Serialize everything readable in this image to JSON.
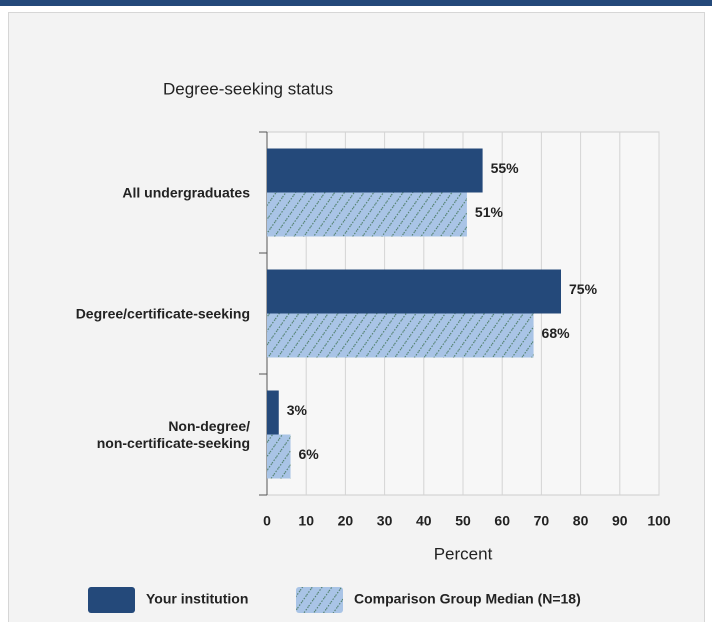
{
  "chart_data": {
    "type": "bar",
    "orientation": "horizontal",
    "title": "Degree-seeking status",
    "categories": [
      "All undergraduates",
      "Degree/certificate-seeking",
      "Non-degree/\nnon-certificate-seeking"
    ],
    "series": [
      {
        "name": "Your institution",
        "color": "#24497a",
        "values": [
          55,
          75,
          3
        ],
        "value_labels": [
          "55%",
          "75%",
          "3%"
        ]
      },
      {
        "name": "Comparison Group Median (N=18)",
        "color": "#a9c4e6",
        "hatch": true,
        "values": [
          51,
          68,
          6
        ],
        "value_labels": [
          "51%",
          "68%",
          "6%"
        ]
      }
    ],
    "x_label": "Percent",
    "xlim": [
      0,
      100
    ],
    "xticks": [
      0,
      10,
      20,
      30,
      40,
      50,
      60,
      70,
      80,
      90,
      100
    ],
    "grid": true
  }
}
